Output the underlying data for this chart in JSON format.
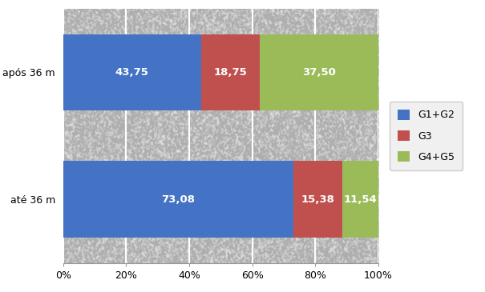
{
  "categories": [
    "até 36 m",
    "após 36 m"
  ],
  "series": [
    {
      "label": "G1+G2",
      "values": [
        73.08,
        43.75
      ],
      "color": "#4472C4"
    },
    {
      "label": "G3",
      "values": [
        15.38,
        18.75
      ],
      "color": "#C0504D"
    },
    {
      "label": "G4+G5",
      "values": [
        11.54,
        37.5
      ],
      "color": "#9BBB59"
    }
  ],
  "bar_labels": [
    [
      "73,08",
      "15,38",
      "11,54"
    ],
    [
      "43,75",
      "18,75",
      "37,50"
    ]
  ],
  "xlim": [
    0,
    100
  ],
  "xticks": [
    0,
    20,
    40,
    60,
    80,
    100
  ],
  "xtick_labels": [
    "0%",
    "20%",
    "40%",
    "60%",
    "80%",
    "100%"
  ],
  "text_color": "#FFFFFF",
  "label_fontsize": 9.5,
  "tick_fontsize": 9,
  "ytick_fontsize": 9,
  "bar_height": 0.6,
  "figure_bg": "#FFFFFF",
  "plot_bg": "#E8E8E8",
  "grid_color": "#FFFFFF",
  "legend_fontsize": 9,
  "figsize": [
    6.05,
    3.65
  ],
  "dpi": 100
}
